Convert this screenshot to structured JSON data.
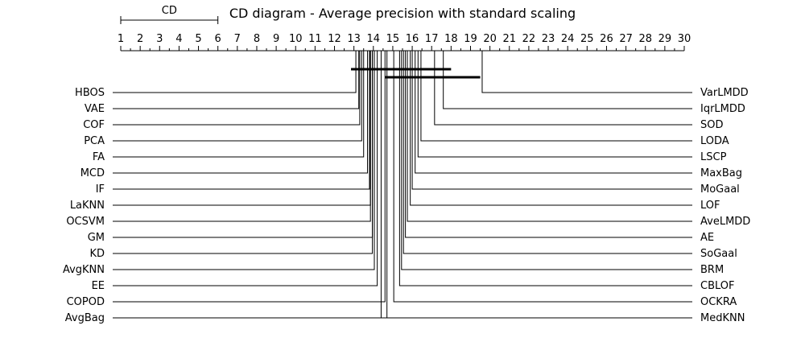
{
  "chart_data": {
    "type": "critical-difference",
    "title": "CD diagram - Average precision with  standard scaling",
    "axis": {
      "min": 1,
      "max": 30,
      "ticks": [
        1,
        2,
        3,
        4,
        5,
        6,
        7,
        8,
        9,
        10,
        11,
        12,
        13,
        14,
        15,
        16,
        17,
        18,
        19,
        20,
        21,
        22,
        23,
        24,
        25,
        26,
        27,
        28,
        29,
        30
      ]
    },
    "cd": {
      "label": "CD",
      "from": 1,
      "to": 6
    },
    "left_methods": [
      {
        "name": "HBOS",
        "rank": 13.1
      },
      {
        "name": "VAE",
        "rank": 13.25
      },
      {
        "name": "COF",
        "rank": 13.3
      },
      {
        "name": "PCA",
        "rank": 13.4
      },
      {
        "name": "FA",
        "rank": 13.5
      },
      {
        "name": "MCD",
        "rank": 13.7
      },
      {
        "name": "IF",
        "rank": 13.8
      },
      {
        "name": "LaKNN",
        "rank": 13.85
      },
      {
        "name": "OCSVM",
        "rank": 13.85
      },
      {
        "name": "GM",
        "rank": 13.95
      },
      {
        "name": "KD",
        "rank": 13.95
      },
      {
        "name": "AvgKNN",
        "rank": 14.05
      },
      {
        "name": "EE",
        "rank": 14.2
      },
      {
        "name": "COPOD",
        "rank": 14.6
      },
      {
        "name": "AvgBag",
        "rank": 14.7
      }
    ],
    "right_methods": [
      {
        "name": "VarLMDD",
        "rank": 19.6
      },
      {
        "name": "IqrLMDD",
        "rank": 17.6
      },
      {
        "name": "SOD",
        "rank": 17.15
      },
      {
        "name": "LODA",
        "rank": 16.45
      },
      {
        "name": "LSCP",
        "rank": 16.3
      },
      {
        "name": "MaxBag",
        "rank": 16.15
      },
      {
        "name": "MoGaal",
        "rank": 16.0
      },
      {
        "name": "LOF",
        "rank": 15.9
      },
      {
        "name": "AveLMDD",
        "rank": 15.75
      },
      {
        "name": "AE",
        "rank": 15.65
      },
      {
        "name": "SoGaal",
        "rank": 15.55
      },
      {
        "name": "BRM",
        "rank": 15.45
      },
      {
        "name": "CBLOF",
        "rank": 15.35
      },
      {
        "name": "OCKRA",
        "rank": 15.05
      },
      {
        "name": "MedKNN",
        "rank": 14.4
      }
    ],
    "cliques": [
      {
        "from": 12.85,
        "to": 18.0
      },
      {
        "from": 14.6,
        "to": 19.5
      }
    ]
  }
}
